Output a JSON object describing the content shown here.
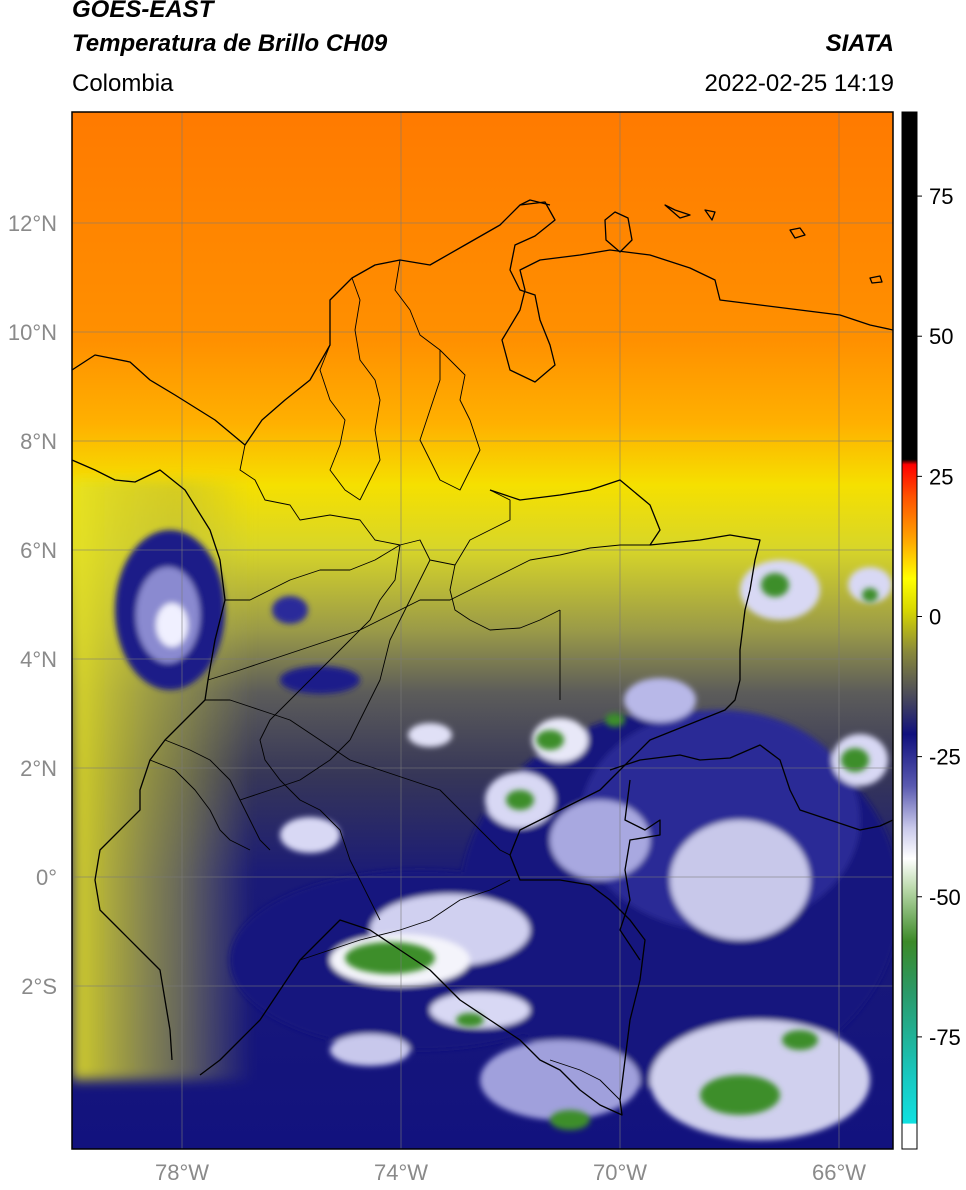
{
  "header": {
    "title_line1": "GOES-EAST",
    "title_line2": "Temperatura de Brillo CH09",
    "brand": "SIATA",
    "region": "Colombia",
    "datetime": "2022-02-25 14:19"
  },
  "axes": {
    "lat_ticks": [
      "12°N",
      "10°N",
      "8°N",
      "6°N",
      "4°N",
      "2°N",
      "0°",
      "2°S"
    ],
    "lon_ticks": [
      "78°W",
      "74°W",
      "70°W",
      "66°W"
    ]
  },
  "colorbar": {
    "ticks": [
      "75",
      "50",
      "25",
      "0",
      "-25",
      "-50",
      "-75"
    ],
    "tick_values": [
      75,
      50,
      25,
      0,
      -25,
      -50,
      -75
    ],
    "range": [
      -95,
      90
    ]
  },
  "colors": {
    "warm": "#ff8000",
    "mid": "#f5e600",
    "olive": "#8a8a3a",
    "cold": "#13137e",
    "white": "#f4f4fb",
    "green": "#3c8a28",
    "cyan": "#20d0c8",
    "black": "#000000"
  }
}
